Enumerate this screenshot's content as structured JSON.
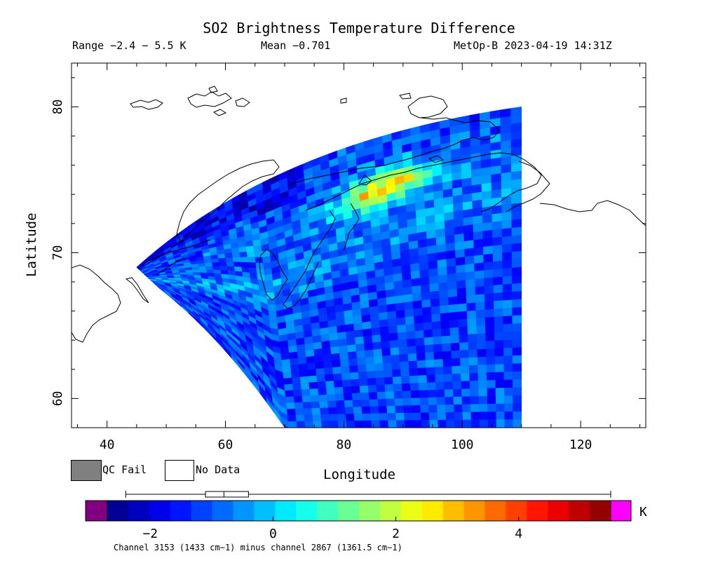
{
  "chart_data": {
    "type": "heatmap",
    "title": "SO2 Brightness Temperature Difference",
    "range_text": "Range −2.4 − 5.5 K",
    "mean_text": "Mean −0.701",
    "satellite_text": "MetOp-B 2023-04-19 14:31Z",
    "xlabel": "Longitude",
    "ylabel": "Latitude",
    "xlim": [
      34,
      131
    ],
    "ylim": [
      58,
      83
    ],
    "xticks": [
      40,
      60,
      80,
      100,
      120
    ],
    "yticks": [
      60,
      70,
      80
    ],
    "grid": false,
    "legend": [
      {
        "label": "QC Fail",
        "color": "#808080"
      },
      {
        "label": "No Data",
        "color": "#ffffff"
      }
    ],
    "colorbar": {
      "range": [
        -2.7,
        5.5
      ],
      "ticks": [
        -2,
        0,
        2,
        4
      ],
      "unit": "K",
      "under_color": "#800080",
      "over_color": "#ff00ff",
      "boxplot": {
        "min": -2.4,
        "q1": -1.1,
        "median": -0.8,
        "q3": -0.4,
        "max": 5.5
      }
    },
    "swath": {
      "corners": {
        "top_left_lon": 45,
        "top_left_lat": 69,
        "top_right_lon": 110,
        "top_right_lat": 80,
        "bottom_right_lon": 110,
        "bottom_right_lat": 58,
        "bottom_left_lon": 70,
        "bottom_left_lat": 58,
        "left_edge_lon": 49,
        "left_edge_lat": 67.5
      },
      "background_value": -1.3,
      "plume_peak_value": 5.0
    },
    "footnote": "Channel 3153 (1433 cm−1) minus channel 2867 (1361.5 cm−1)"
  }
}
